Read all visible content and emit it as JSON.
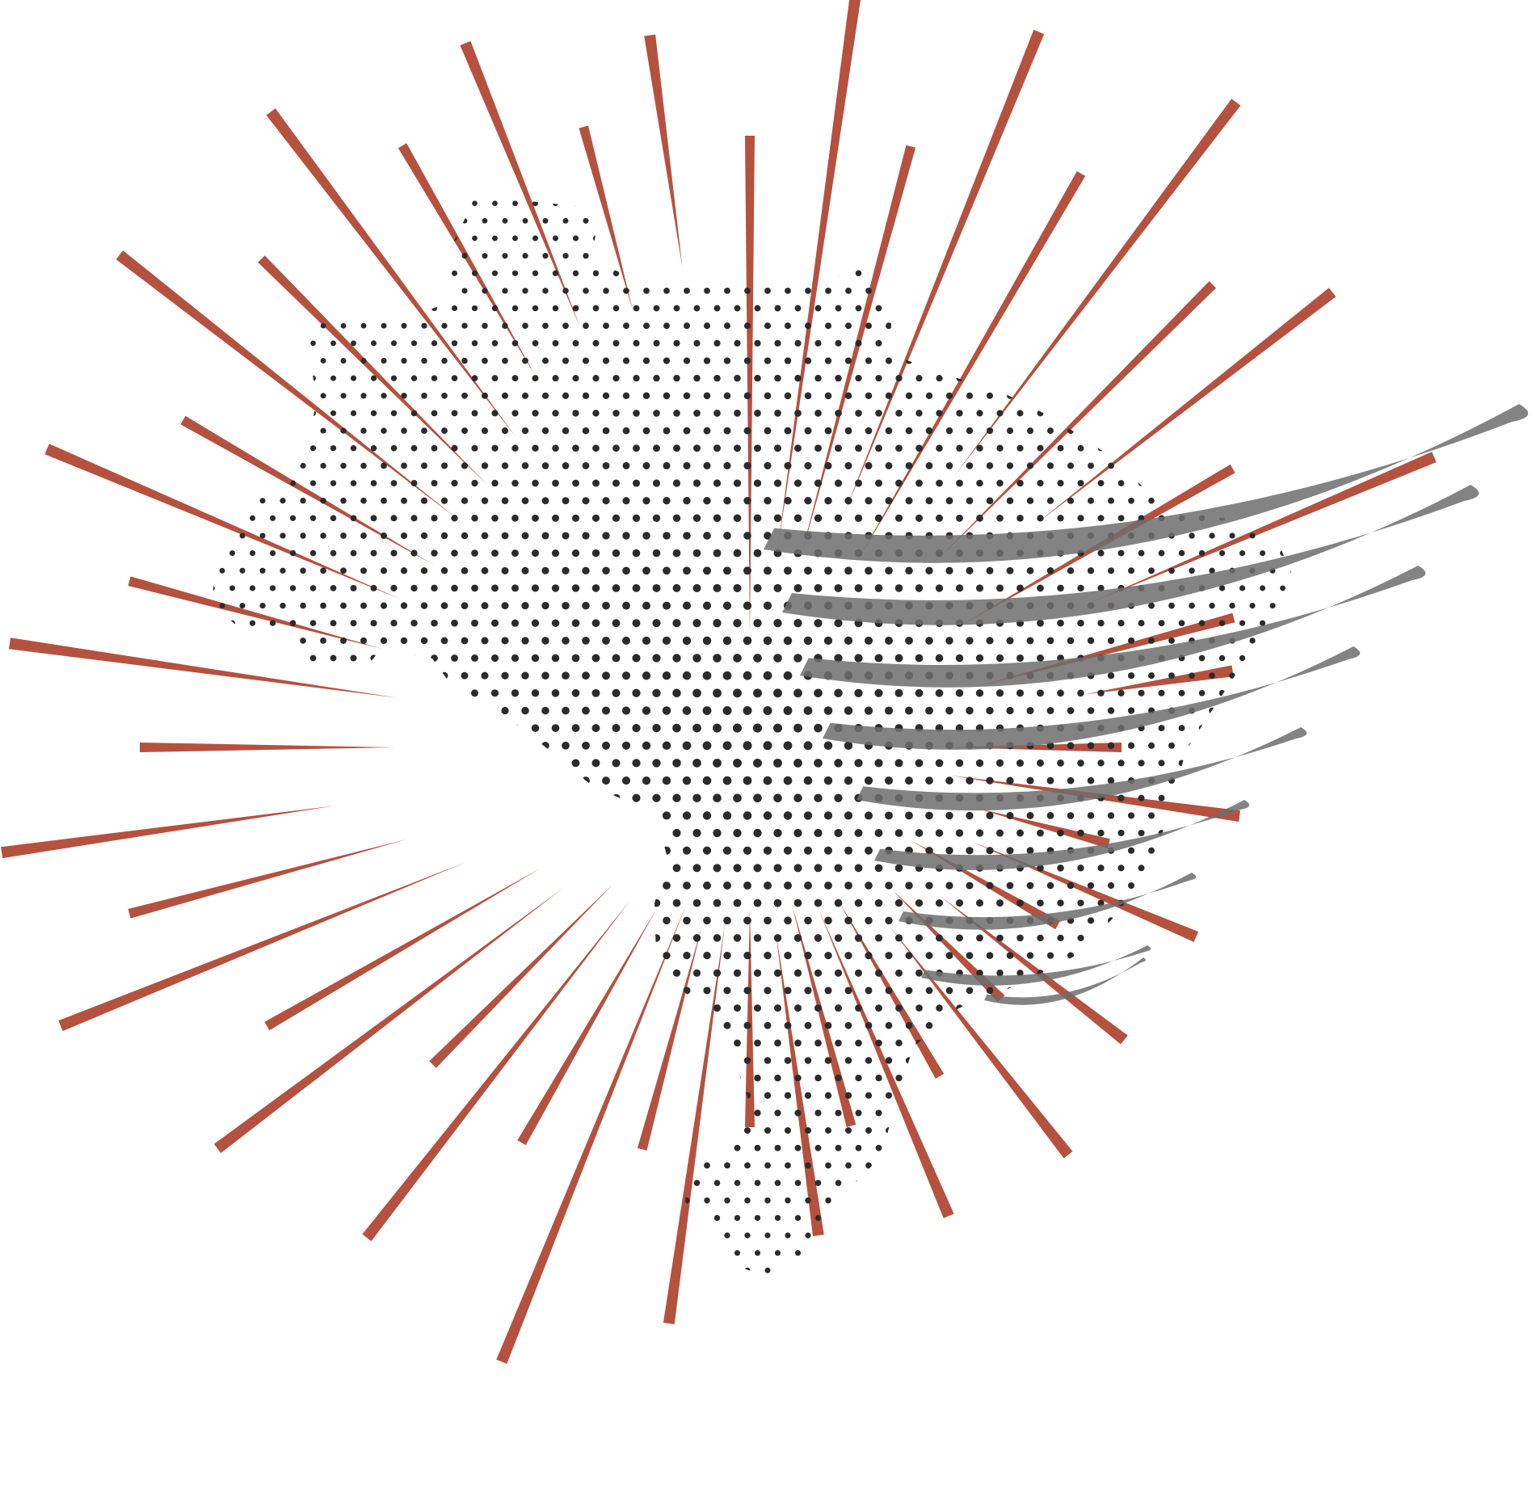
{
  "illustration": {
    "subject": "halftone-map-with-burst-and-tornado",
    "colors": {
      "background": "#ffffff",
      "burst_ray": "#b5513f",
      "halftone_dot": "#2b2b2b",
      "tornado_band": "#6e6e6e"
    },
    "icons": [
      "sunburst-icon",
      "halftone-map-icon",
      "tornado-icon"
    ]
  }
}
